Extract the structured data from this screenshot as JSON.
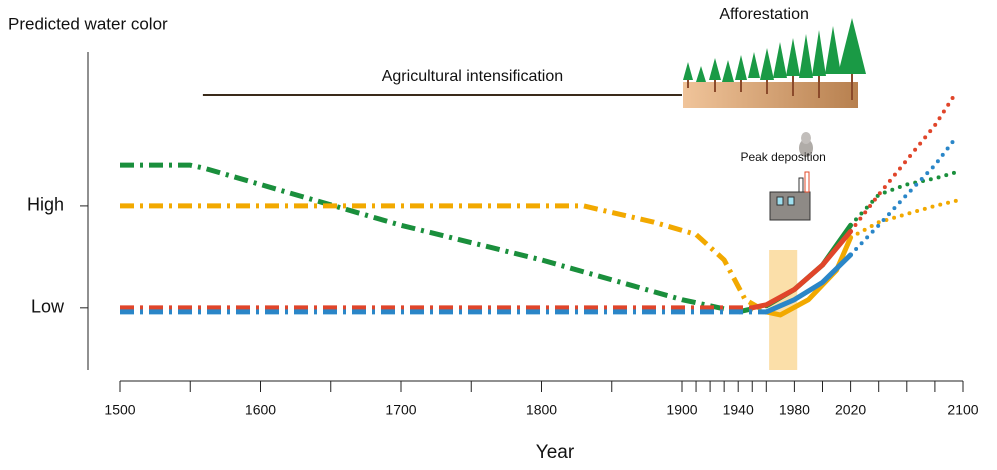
{
  "chart_data": {
    "type": "line",
    "title": "Predicted water color",
    "xlabel": "Year",
    "xlim": [
      1500,
      2100
    ],
    "xticks": [
      1500,
      1600,
      1700,
      1800,
      1900,
      1940,
      1980,
      2020,
      2100
    ],
    "xminor": [
      1550,
      1650,
      1750,
      1850,
      1910,
      1920,
      1930,
      1950,
      1960,
      2000,
      2040,
      2060,
      2080
    ],
    "ylim": [
      -0.61,
      2.51
    ],
    "yticks": [
      {
        "value": 0,
        "label": "Low"
      },
      {
        "value": 1,
        "label": "High"
      }
    ],
    "series": [
      {
        "color": "#1a8f3c",
        "style": "dashdot",
        "x": [
          1500,
          1550,
          1560,
          1700,
          1800,
          1900,
          1940,
          1960
        ],
        "values": [
          1.4,
          1.4,
          1.37,
          0.81,
          0.47,
          0.08,
          -0.04,
          0.02
        ]
      },
      {
        "color": "#1a8f3c",
        "style": "solid",
        "x": [
          1960,
          1980,
          2000,
          2020
        ],
        "values": [
          0.02,
          0.18,
          0.42,
          0.81
        ]
      },
      {
        "color": "#1a8f3c",
        "style": "dotted",
        "x": [
          2020,
          2040,
          2060,
          2080,
          2095
        ],
        "values": [
          0.81,
          1.11,
          1.21,
          1.27,
          1.33
        ]
      },
      {
        "color": "#f2a900",
        "style": "dashdot",
        "x": [
          1500,
          1830,
          1880,
          1910,
          1930,
          1945,
          1960
        ],
        "values": [
          1.0,
          1.0,
          0.84,
          0.72,
          0.47,
          0.08,
          -0.04
        ]
      },
      {
        "color": "#f2a900",
        "style": "solid",
        "x": [
          1960,
          1970,
          1990,
          2010,
          2020
        ],
        "values": [
          -0.04,
          -0.07,
          0.08,
          0.37,
          0.69
        ]
      },
      {
        "color": "#f2a900",
        "style": "dotted",
        "x": [
          2020,
          2040,
          2060,
          2080,
          2095
        ],
        "values": [
          0.69,
          0.84,
          0.92,
          1.0,
          1.05
        ]
      },
      {
        "color": "#e0452a",
        "style": "dashdot",
        "x": [
          1500,
          1950
        ],
        "values": [
          0.0,
          0.0
        ]
      },
      {
        "color": "#e0452a",
        "style": "solid",
        "x": [
          1950,
          1960,
          1980,
          2000,
          2020
        ],
        "values": [
          0.0,
          0.03,
          0.18,
          0.42,
          0.75
        ]
      },
      {
        "color": "#e0452a",
        "style": "dotted",
        "x": [
          2020,
          2040,
          2060,
          2080,
          2095
        ],
        "values": [
          0.75,
          1.11,
          1.45,
          1.79,
          2.11
        ]
      },
      {
        "color": "#2a86c8",
        "style": "dashdot",
        "x": [
          1500,
          1960
        ],
        "values": [
          -0.04,
          -0.04
        ]
      },
      {
        "color": "#2a86c8",
        "style": "solid",
        "x": [
          1960,
          1980,
          2000,
          2020
        ],
        "values": [
          -0.04,
          0.08,
          0.25,
          0.52
        ]
      },
      {
        "color": "#2a86c8",
        "style": "dotted",
        "x": [
          2020,
          2040,
          2060,
          2080,
          2095
        ],
        "values": [
          0.52,
          0.81,
          1.11,
          1.4,
          1.67
        ]
      }
    ],
    "annotations": [
      {
        "text": "Agricultural intensification",
        "x": [
          1559,
          1900
        ]
      },
      {
        "text": "Afforestation",
        "x": [
          1900,
          2024
        ]
      },
      {
        "text": "Peak deposition",
        "x": [
          1962,
          1982
        ]
      }
    ]
  }
}
